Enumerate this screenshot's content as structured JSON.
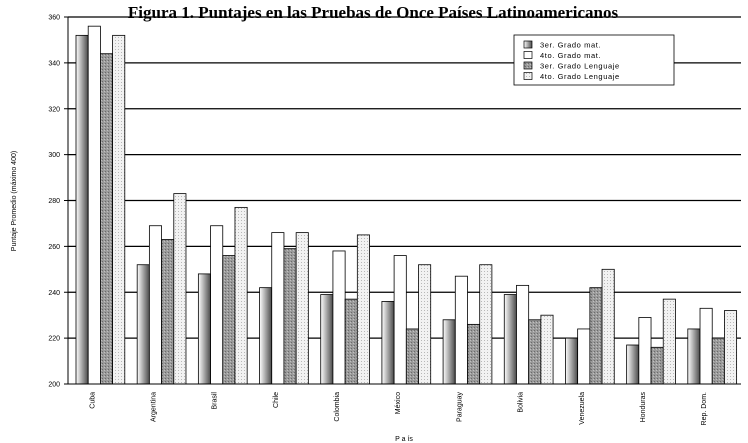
{
  "chart_data": {
    "type": "bar",
    "title": "Figura 1. Puntajes en las Pruebas de Once Países Latinoamericanos",
    "xlabel": "P a ís",
    "ylabel": "Puntaje Promedio (máximo 400)",
    "ylim": [
      200,
      360
    ],
    "yticks": [
      200,
      220,
      240,
      260,
      280,
      300,
      320,
      340,
      360
    ],
    "grid": true,
    "legend_position": "top-right",
    "categories": [
      "Cuba",
      "Argentina",
      "Brasil",
      "Chile",
      "Colombia",
      "México",
      "Paraguay",
      "Bolivia",
      "Venezuela",
      "Honduras",
      "Rep. Dom."
    ],
    "series": [
      {
        "name": "3er. Grado mat.",
        "values": [
          352,
          252,
          248,
          242,
          239,
          236,
          228,
          239,
          220,
          217,
          224
        ]
      },
      {
        "name": "4to. Grado mat.",
        "values": [
          356,
          269,
          269,
          266,
          258,
          256,
          247,
          243,
          224,
          229,
          233
        ]
      },
      {
        "name": "3er. Grado Lenguaje",
        "values": [
          344,
          263,
          256,
          259,
          237,
          224,
          226,
          228,
          242,
          216,
          220
        ]
      },
      {
        "name": "4to. Grado Lenguaje",
        "values": [
          352,
          283,
          277,
          266,
          265,
          252,
          252,
          230,
          250,
          237,
          232
        ]
      }
    ]
  }
}
